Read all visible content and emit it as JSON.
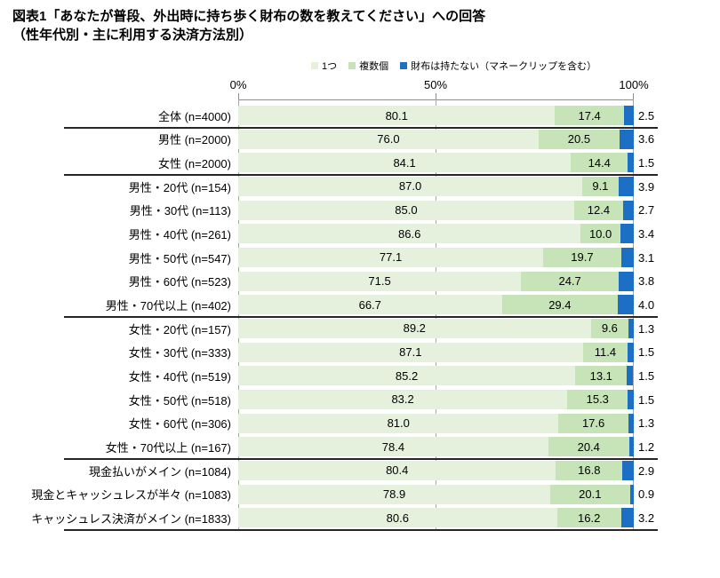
{
  "title": {
    "line1": "図表1「あなたが普段、外出時に持ち歩く財布の数を教えてください」への回答",
    "line2": "（性年代別・主に利用する決済方法別）"
  },
  "axis": {
    "tick_labels": [
      "0%",
      "50%",
      "100%"
    ]
  },
  "chart_data": {
    "type": "bar",
    "stacked": true,
    "orientation": "horizontal",
    "xlim": [
      0,
      100
    ],
    "x_ticks": [
      0,
      50,
      100
    ],
    "legend_position": "top",
    "grid": "vertical",
    "series": [
      {
        "name": "1つ",
        "color": "#e6f1dd"
      },
      {
        "name": "複数個",
        "color": "#c6e4b7"
      },
      {
        "name": "財布は持たない（マネークリップを含む）",
        "color": "#1d6fc6"
      }
    ],
    "rows": [
      {
        "label": "全体 (n=4000)",
        "values": [
          80.1,
          17.4,
          2.5
        ]
      },
      {
        "label": "男性 (n=2000)",
        "values": [
          76.0,
          20.5,
          3.6
        ]
      },
      {
        "label": "女性 (n=2000)",
        "values": [
          84.1,
          14.4,
          1.5
        ]
      },
      {
        "label": "男性・20代 (n=154)",
        "values": [
          87.0,
          9.1,
          3.9
        ]
      },
      {
        "label": "男性・30代 (n=113)",
        "values": [
          85.0,
          12.4,
          2.7
        ]
      },
      {
        "label": "男性・40代 (n=261)",
        "values": [
          86.6,
          10.0,
          3.4
        ]
      },
      {
        "label": "男性・50代 (n=547)",
        "values": [
          77.1,
          19.7,
          3.1
        ]
      },
      {
        "label": "男性・60代 (n=523)",
        "values": [
          71.5,
          24.7,
          3.8
        ]
      },
      {
        "label": "男性・70代以上 (n=402)",
        "values": [
          66.7,
          29.4,
          4.0
        ]
      },
      {
        "label": "女性・20代 (n=157)",
        "values": [
          89.2,
          9.6,
          1.3
        ]
      },
      {
        "label": "女性・30代 (n=333)",
        "values": [
          87.1,
          11.4,
          1.5
        ]
      },
      {
        "label": "女性・40代 (n=519)",
        "values": [
          85.2,
          13.1,
          1.5
        ]
      },
      {
        "label": "女性・50代 (n=518)",
        "values": [
          83.2,
          15.3,
          1.5
        ]
      },
      {
        "label": "女性・60代 (n=306)",
        "values": [
          81.0,
          17.6,
          1.3
        ]
      },
      {
        "label": "女性・70代以上 (n=167)",
        "values": [
          78.4,
          20.4,
          1.2
        ]
      },
      {
        "label": "現金払いがメイン (n=1084)",
        "values": [
          80.4,
          16.8,
          2.9
        ]
      },
      {
        "label": "現金とキャッシュレスが半々 (n=1083)",
        "values": [
          78.9,
          20.1,
          0.9
        ]
      },
      {
        "label": "キャッシュレス決済がメイン (n=1833)",
        "values": [
          80.6,
          16.2,
          3.2
        ]
      }
    ],
    "group_separators_after_row": [
      1,
      3,
      9,
      15,
      18
    ]
  }
}
